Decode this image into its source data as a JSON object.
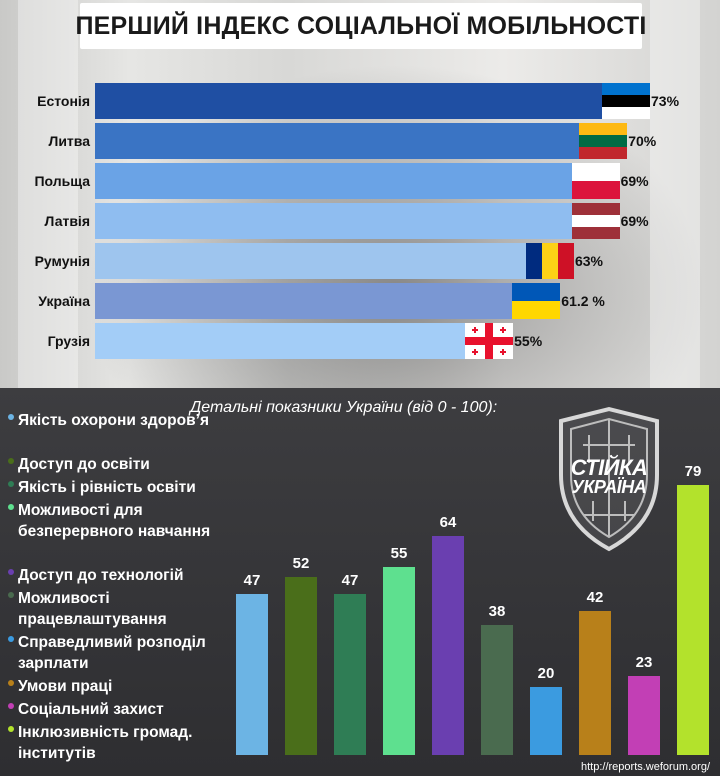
{
  "title": "ПЕРШИЙ ІНДЕКС СОЦІАЛЬНОЇ МОБІЛЬНОСТІ",
  "subtitle": "Детальні показники України (від 0 - 100):",
  "source": "http://reports.weforum.org/",
  "logo": {
    "line1": "СТІЙКА",
    "line2": "УКРАЇНА",
    "icon": "shield-emblem-icon"
  },
  "chart_data": [
    {
      "type": "bar",
      "orientation": "horizontal",
      "title": "ПЕРШИЙ ІНДЕКС СОЦІАЛЬНОЇ МОБІЛЬНОСТІ",
      "xlim": [
        0,
        75
      ],
      "categories": [
        "Естонія",
        "Литва",
        "Польща",
        "Латвія",
        "Румунія",
        "Україна",
        "Грузія"
      ],
      "values": [
        73,
        70,
        69,
        69,
        63,
        61.2,
        55
      ],
      "value_labels": [
        "73%",
        "70%",
        "69%",
        "69%",
        "63%",
        "61.2 %",
        "55%"
      ],
      "bar_colors": [
        "#1f4fa3",
        "#3a74c4",
        "#6aa3e6",
        "#8fbdf0",
        "#9ec5ee",
        "#7a97d3",
        "#a3cdf7"
      ],
      "flags": [
        "estonia-flag-icon",
        "lithuania-flag-icon",
        "poland-flag-icon",
        "latvia-flag-icon",
        "romania-flag-icon",
        "ukraine-flag-icon",
        "georgia-flag-icon"
      ]
    },
    {
      "type": "bar",
      "orientation": "vertical",
      "title": "Детальні показники України (від 0 - 100):",
      "ylim": [
        0,
        100
      ],
      "categories": [
        "Якість охорони здоров’я",
        "Доступ до освіти",
        "Якість і рівність освіти",
        "Можливості для безперервного навчання",
        "Доступ до технологій",
        "Можливості працевлаштування",
        "Справедливий розподіл зарплати",
        "Умови праці",
        "Соціальний захист",
        "Інклюзивність громад. інститутів"
      ],
      "values": [
        47,
        52,
        47,
        55,
        64,
        38,
        20,
        42,
        23,
        79
      ],
      "colors": [
        "#6cb4e4",
        "#4a6e1a",
        "#2f7d55",
        "#5ee08f",
        "#6a3fb0",
        "#4a6b4f",
        "#3b9be0",
        "#b8801a",
        "#c23fb5",
        "#b3e22c"
      ],
      "legend": "left"
    }
  ]
}
